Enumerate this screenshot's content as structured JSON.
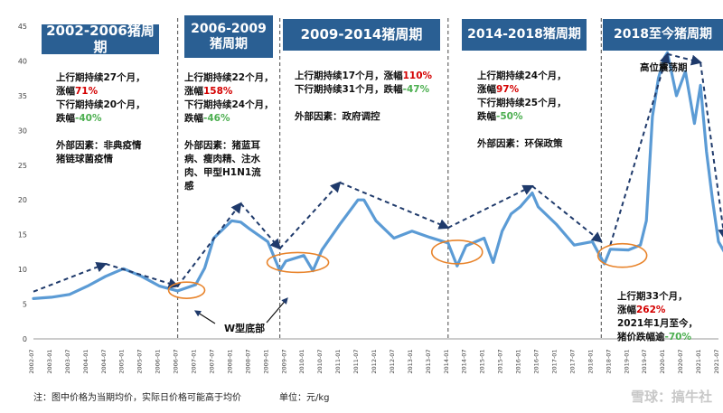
{
  "colors": {
    "header_bg": "#2a5f93",
    "line": "#5b9bd5",
    "trend": "#1f3a6b",
    "ellipse": "#e8832a",
    "divider": "#666666",
    "rise": "#d40000",
    "fall": "#4caf50"
  },
  "cycles": [
    {
      "title": "2002-2006猪周期",
      "lines": [
        [
          {
            "t": "上行期持续27个月，"
          }
        ],
        [
          {
            "t": "涨幅"
          },
          {
            "t": "71%",
            "c": "red"
          }
        ],
        [
          {
            "t": "下行期持续20个月，"
          }
        ],
        [
          {
            "t": "跌幅"
          },
          {
            "t": "-40%",
            "c": "grn"
          }
        ],
        [
          {
            "t": ""
          }
        ],
        [
          {
            "t": "外部因素：非典疫情"
          }
        ],
        [
          {
            "t": "猪链球菌疫情"
          }
        ]
      ]
    },
    {
      "title": "2006-2009\n猪周期",
      "lines": [
        [
          {
            "t": "上行期持续22个月，"
          }
        ],
        [
          {
            "t": "涨幅"
          },
          {
            "t": "158%",
            "c": "red"
          }
        ],
        [
          {
            "t": "下行期持续24个月，"
          }
        ],
        [
          {
            "t": "跌幅"
          },
          {
            "t": "-46%",
            "c": "grn"
          }
        ],
        [
          {
            "t": ""
          }
        ],
        [
          {
            "t": "外部因素：猪蓝耳"
          }
        ],
        [
          {
            "t": "病、瘦肉精、注水"
          }
        ],
        [
          {
            "t": "肉、甲型H1N1流"
          }
        ],
        [
          {
            "t": "感"
          }
        ]
      ]
    },
    {
      "title": "2009-2014猪周期",
      "lines": [
        [
          {
            "t": "上行期持续17个月，涨幅"
          },
          {
            "t": "110%",
            "c": "red"
          }
        ],
        [
          {
            "t": "下行期持续31个月，跌幅"
          },
          {
            "t": "-47%",
            "c": "grn"
          }
        ],
        [
          {
            "t": ""
          }
        ],
        [
          {
            "t": "外部因素：政府调控"
          }
        ]
      ]
    },
    {
      "title": "2014-2018猪周期",
      "lines": [
        [
          {
            "t": "上行期持续24个月，"
          }
        ],
        [
          {
            "t": "涨幅"
          },
          {
            "t": "97%",
            "c": "red"
          }
        ],
        [
          {
            "t": "下行期持续25个月，"
          }
        ],
        [
          {
            "t": "跌幅"
          },
          {
            "t": "-50%",
            "c": "grn"
          }
        ],
        [
          {
            "t": ""
          }
        ],
        [
          {
            "t": "外部因素：环保政策"
          }
        ]
      ]
    },
    {
      "title": "2018至今猪周期",
      "lines": [
        [
          {
            "t": "上行期33个月，"
          }
        ],
        [
          {
            "t": "涨幅"
          },
          {
            "t": "262%",
            "c": "red"
          }
        ],
        [
          {
            "t": "2021年1月至今，"
          }
        ],
        [
          {
            "t": "猪价跌幅逾"
          },
          {
            "t": "-70%",
            "c": "grn"
          }
        ]
      ]
    }
  ],
  "annotations": {
    "w_bottom": "W型底部",
    "plateau": "高位震荡期"
  },
  "footnote": "注：图中价格为当期均价，实际日价格可能高于均价",
  "unit": "单位：元/kg",
  "watermark": "雪球：搞牛社",
  "chart_data": {
    "type": "line",
    "ylim": [
      0,
      45
    ],
    "yticks": [
      0,
      5,
      10,
      15,
      20,
      25,
      30,
      35,
      40,
      45
    ],
    "xticks": [
      "2002-07",
      "2003-01",
      "2003-07",
      "2004-01",
      "2004-07",
      "2005-01",
      "2005-07",
      "2006-01",
      "2006-07",
      "2007-01",
      "2007-07",
      "2008-01",
      "2008-07",
      "2009-01",
      "2009-07",
      "2010-01",
      "2010-07",
      "2011-01",
      "2011-07",
      "2012-01",
      "2012-07",
      "2013-01",
      "2013-07",
      "2014-01",
      "2014-07",
      "2015-01",
      "2015-07",
      "2016-01",
      "2016-07",
      "2017-01",
      "2017-07",
      "2018-01",
      "2018-07",
      "2019-01",
      "2019-07",
      "2020-01",
      "2020-07",
      "2021-01",
      "2021-07"
    ],
    "series": [
      {
        "x": [
          "2002-07",
          "2003-01",
          "2003-07",
          "2004-01",
          "2004-07",
          "2005-01",
          "2005-07",
          "2006-01",
          "2006-07",
          "2007-01",
          "2007-04",
          "2007-07",
          "2008-01",
          "2008-04",
          "2008-07",
          "2009-01",
          "2009-05",
          "2009-07",
          "2010-01",
          "2010-04",
          "2010-07",
          "2011-01",
          "2011-07",
          "2011-09",
          "2012-01",
          "2012-07",
          "2013-01",
          "2013-07",
          "2014-01",
          "2014-04",
          "2014-07",
          "2015-01",
          "2015-04",
          "2015-07",
          "2015-10",
          "2016-01",
          "2016-05",
          "2016-07",
          "2017-01",
          "2017-07",
          "2018-01",
          "2018-05",
          "2018-07",
          "2019-01",
          "2019-05",
          "2019-07",
          "2019-09",
          "2019-11",
          "2020-01",
          "2020-02",
          "2020-05",
          "2020-08",
          "2020-11",
          "2021-01",
          "2021-03",
          "2021-05",
          "2021-07",
          "2021-09"
        ],
        "values": [
          5.8,
          6.0,
          6.4,
          7.6,
          9.0,
          10.1,
          9.0,
          7.6,
          6.9,
          7.8,
          10.2,
          14.5,
          17.0,
          16.8,
          15.8,
          14.0,
          9.8,
          11.2,
          12.0,
          9.8,
          12.8,
          16.5,
          20.0,
          20.0,
          17.0,
          14.5,
          15.5,
          14.6,
          13.8,
          10.5,
          13.4,
          14.5,
          11.0,
          15.5,
          18.0,
          19.0,
          21.0,
          19.0,
          16.5,
          13.5,
          14.0,
          10.8,
          12.9,
          12.8,
          13.5,
          17.0,
          32.0,
          37.5,
          40.5,
          41.2,
          35.0,
          38.5,
          31.0,
          36.5,
          27.0,
          20.0,
          14.0,
          12.5
        ]
      }
    ],
    "trend_segments": [
      [
        [
          "2002-07",
          6.8
        ],
        [
          "2004-07",
          10.8
        ],
        [
          "2006-07",
          7.6
        ]
      ],
      [
        [
          "2006-07",
          7.6
        ],
        [
          "2008-04",
          19.5
        ],
        [
          "2009-05",
          13.0
        ]
      ],
      [
        [
          "2009-05",
          13.0
        ],
        [
          "2011-01",
          22.5
        ],
        [
          "2014-01",
          16.0
        ]
      ],
      [
        [
          "2014-01",
          16.0
        ],
        [
          "2016-05",
          22.0
        ],
        [
          "2018-04",
          14.0
        ]
      ],
      [
        [
          "2018-07",
          13.5
        ],
        [
          "2020-02",
          41.0
        ],
        [
          "2021-01",
          39.8
        ],
        [
          "2021-09",
          14.5
        ]
      ]
    ]
  }
}
